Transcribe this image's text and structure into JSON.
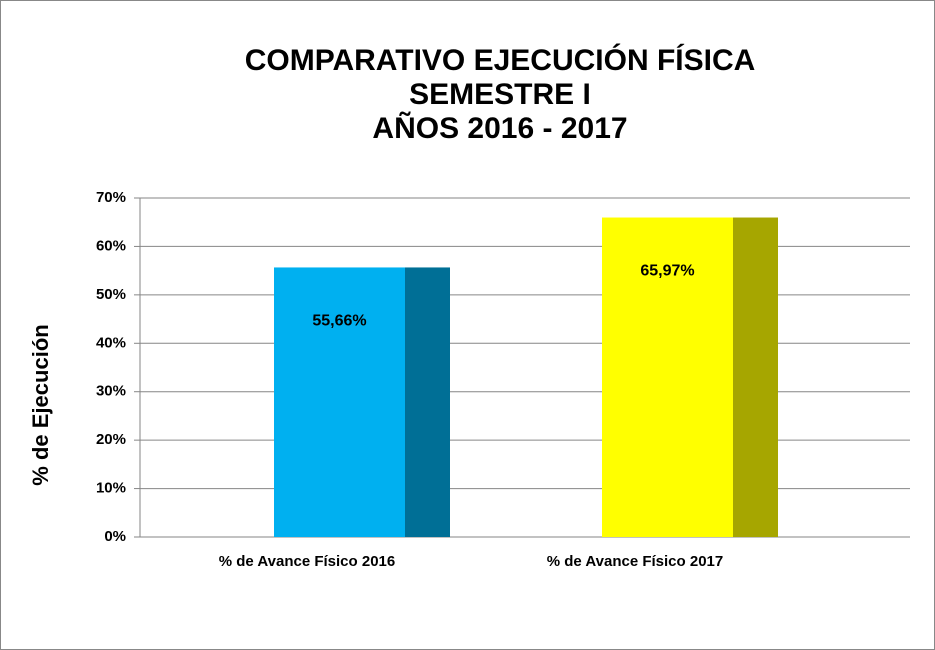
{
  "chart_data": {
    "type": "bar",
    "title": [
      "COMPARATIVO EJECUCIÓN FÍSICA",
      "SEMESTRE I",
      "AÑOS 2016 - 2017"
    ],
    "y_label": "% de Ejecución",
    "categories": [
      "% de Avance Físico 2016",
      "% de Avance Físico 2017"
    ],
    "values": [
      55.66,
      65.97
    ],
    "value_labels": [
      "55,66%",
      "65,97%"
    ],
    "colors": [
      "#00b0f0",
      "#ffff00"
    ],
    "side_colors": [
      "#006f96",
      "#a6a600"
    ],
    "ylim": [
      0,
      70
    ],
    "yticks": [
      {
        "value": 0,
        "label": "0%"
      },
      {
        "value": 10,
        "label": "10%"
      },
      {
        "value": 20,
        "label": "20%"
      },
      {
        "value": 30,
        "label": "30%"
      },
      {
        "value": 40,
        "label": "40%"
      },
      {
        "value": 50,
        "label": "50%"
      },
      {
        "value": 60,
        "label": "60%"
      },
      {
        "value": 70,
        "label": "70%"
      }
    ],
    "grid": true
  }
}
